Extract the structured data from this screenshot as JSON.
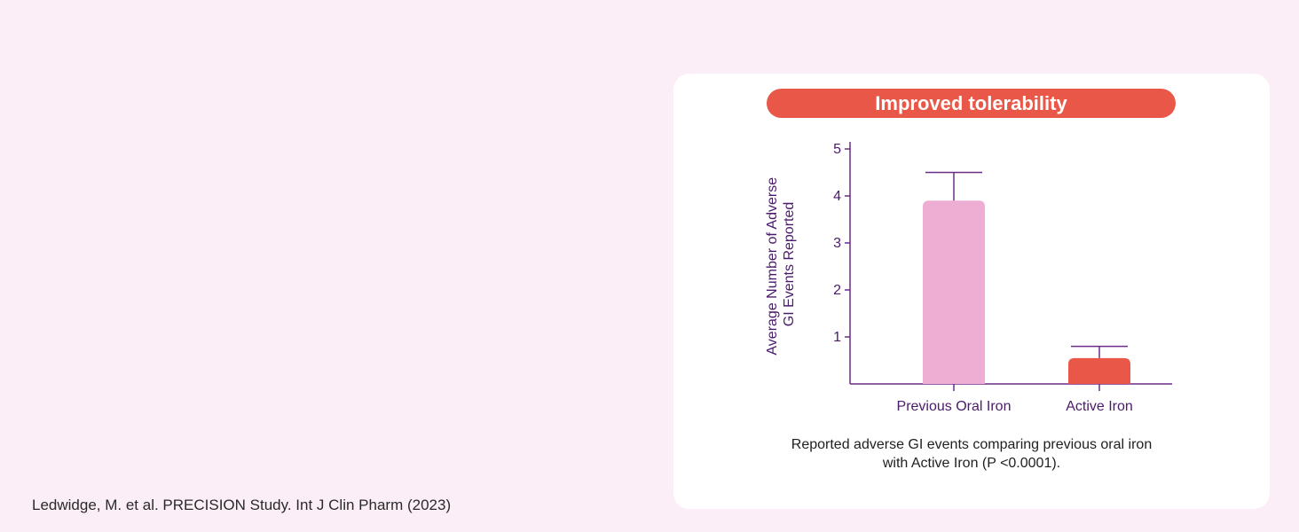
{
  "citation": "Ledwidge, M. et al. PRECISION Study. Int J Clin Pharm (2023)",
  "card": {
    "title": "Improved tolerability",
    "caption_line1": "Reported adverse GI events comparing previous oral iron",
    "caption_line2": "with Active Iron (P <0.0001)."
  },
  "chart_data": {
    "type": "bar",
    "title": "Improved tolerability",
    "categories": [
      "Previous Oral Iron",
      "Active Iron"
    ],
    "values": [
      3.9,
      0.55
    ],
    "error_upper": [
      4.5,
      0.8
    ],
    "ylabel_line1": "Average Number of Adverse",
    "ylabel_line2": "GI Events Reported",
    "ylim": [
      0,
      5
    ],
    "yticks": [
      1,
      2,
      3,
      4,
      5
    ],
    "grid": false,
    "colors": [
      "#eeadd3",
      "#e85748"
    ],
    "axis_color": "#6b2c86"
  }
}
